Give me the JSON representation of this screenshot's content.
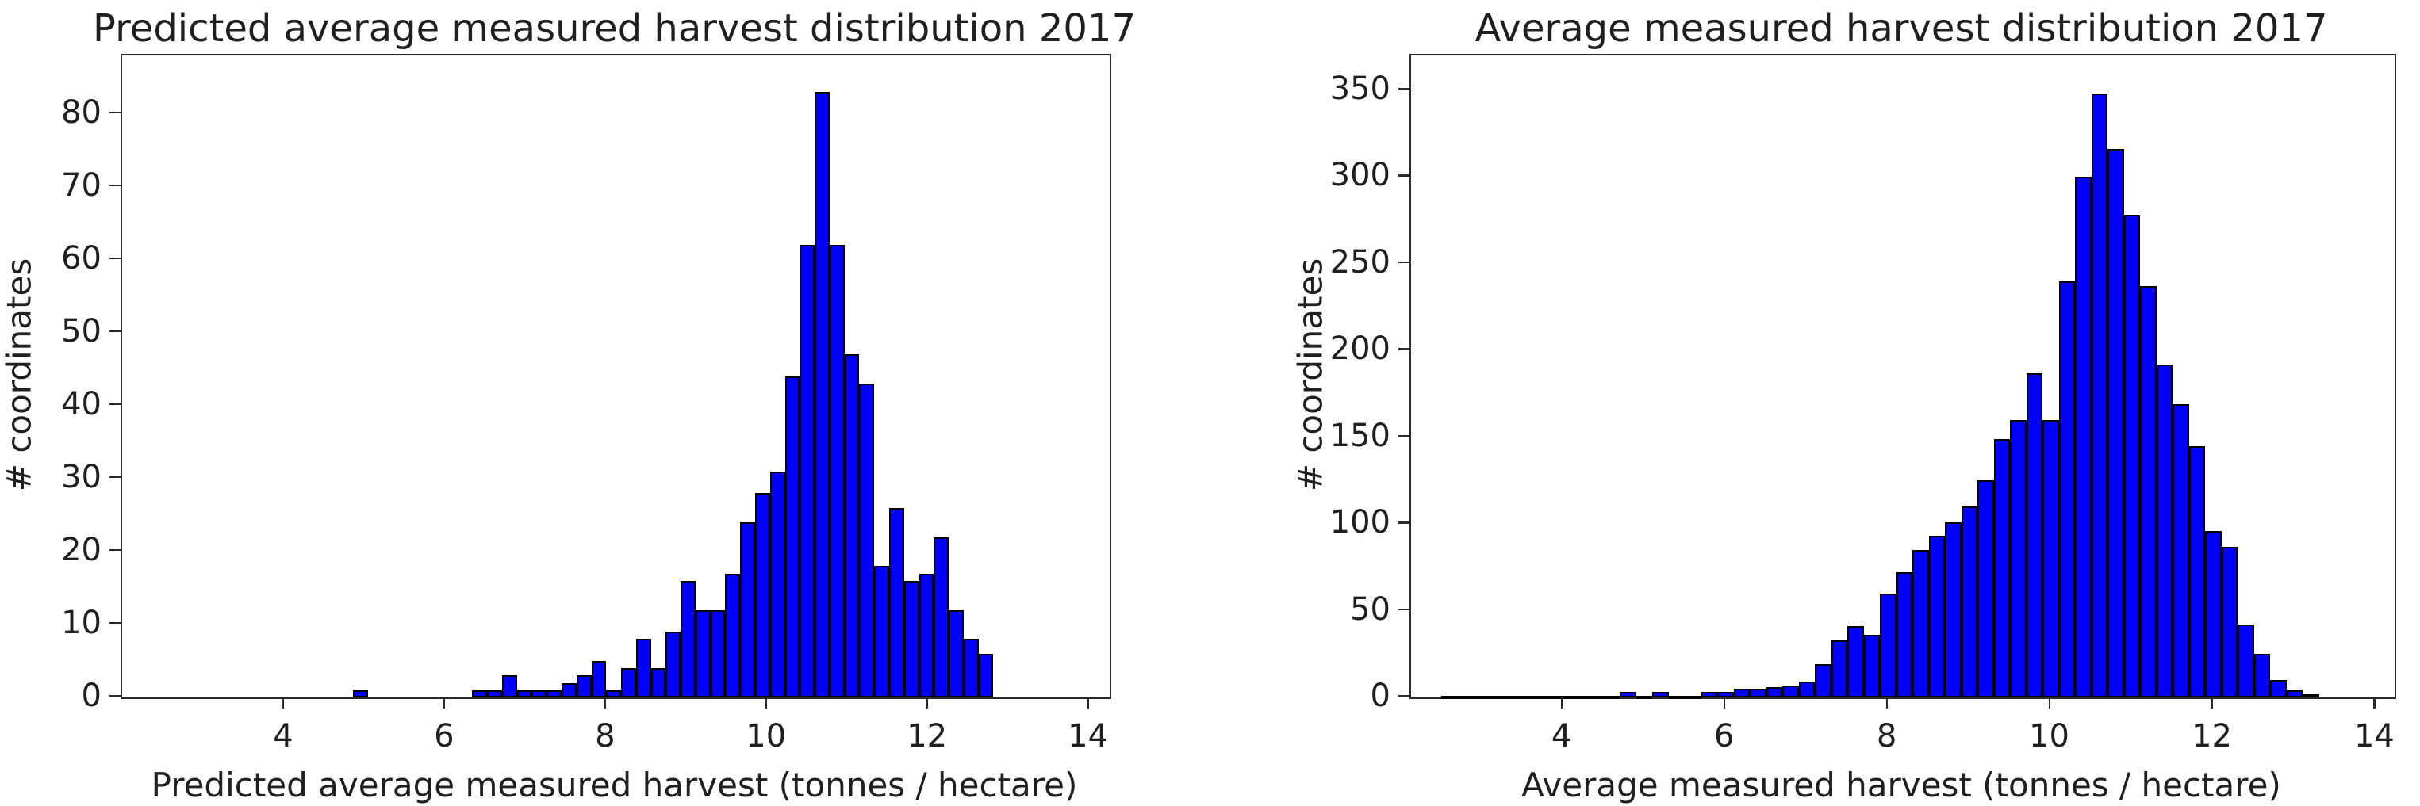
{
  "figure": {
    "background_color": "#ffffff",
    "bar_fill_color": "#0101fa",
    "bar_edge_color": "#000000",
    "text_color": "#1f1f1f"
  },
  "chart_data": [
    {
      "type": "bar",
      "subtype": "histogram",
      "title": "Predicted average measured harvest distribution 2017",
      "xlabel": "Predicted average measured harvest (tonnes / hectare)",
      "ylabel": "# coordinates",
      "bin_start": 4.85,
      "bin_width": 0.185,
      "counts": [
        1,
        0,
        0,
        0,
        0,
        0,
        0,
        0,
        1,
        1,
        3,
        1,
        1,
        1,
        2,
        3,
        5,
        1,
        4,
        8,
        4,
        9,
        16,
        12,
        12,
        17,
        24,
        28,
        31,
        44,
        62,
        83,
        62,
        47,
        43,
        18,
        26,
        16,
        17,
        22,
        12,
        8,
        6
      ],
      "x_ticks": [
        4,
        6,
        8,
        10,
        12,
        14
      ],
      "y_ticks": [
        0,
        10,
        20,
        30,
        40,
        50,
        60,
        70,
        80
      ],
      "xlim": [
        1.98,
        14.25
      ],
      "ylim": [
        0,
        88
      ],
      "grid": false,
      "legend": null
    },
    {
      "type": "bar",
      "subtype": "histogram",
      "title": "Average measured harvest distribution 2017",
      "xlabel": "Average measured harvest (tonnes / hectare)",
      "ylabel": "# coordinates",
      "bin_start": 2.5,
      "bin_width": 0.2,
      "counts": [
        1,
        1,
        1,
        1,
        1,
        1,
        1,
        1,
        1,
        1,
        1,
        3,
        1,
        3,
        1,
        1,
        3,
        3,
        5,
        5,
        6,
        7,
        9,
        19,
        33,
        41,
        36,
        60,
        72,
        85,
        93,
        101,
        110,
        125,
        149,
        160,
        187,
        160,
        240,
        300,
        348,
        316,
        278,
        237,
        192,
        169,
        145,
        96,
        87,
        42,
        25,
        10,
        4,
        2
      ],
      "x_ticks": [
        4,
        6,
        8,
        10,
        12,
        14
      ],
      "y_ticks": [
        0,
        50,
        100,
        150,
        200,
        250,
        300,
        350
      ],
      "xlim": [
        2.13,
        14.23
      ],
      "ylim": [
        0,
        370
      ],
      "grid": false,
      "legend": null
    }
  ]
}
